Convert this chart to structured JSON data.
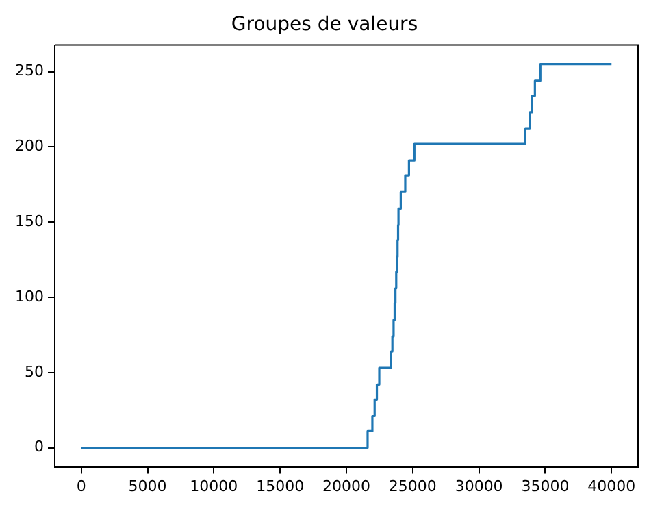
{
  "chart_data": {
    "type": "step",
    "title": "Groupes de valeurs",
    "x": [
      0,
      21600,
      21960,
      22130,
      22300,
      22480,
      23370,
      23470,
      23560,
      23640,
      23700,
      23760,
      23810,
      23860,
      23900,
      23930,
      24100,
      24440,
      24720,
      25130,
      33500,
      33840,
      34010,
      34220,
      34630,
      40000
    ],
    "series": [
      {
        "color": "#1f77b4",
        "values": [
          0,
          11,
          21,
          32,
          42,
          53,
          64,
          74,
          85,
          96,
          106,
          117,
          127,
          138,
          148,
          159,
          170,
          181,
          191,
          202,
          212,
          223,
          234,
          244,
          255,
          255
        ]
      }
    ],
    "xlim": [
      -2000,
      42000
    ],
    "ylim": [
      -12.75,
      267.75
    ],
    "xticks": [
      0,
      5000,
      10000,
      15000,
      20000,
      25000,
      30000,
      35000,
      40000
    ],
    "yticks": [
      0,
      50,
      100,
      150,
      200,
      250
    ],
    "grid": false,
    "legend": false
  }
}
